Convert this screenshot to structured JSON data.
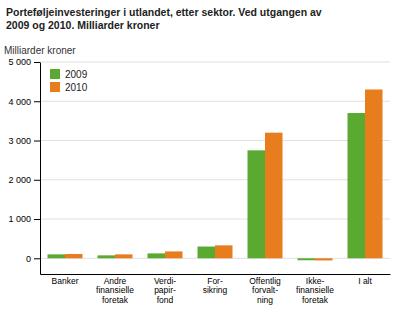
{
  "chart_data": {
    "type": "bar",
    "title": "Porteføljeinvesteringer i utlandet, etter sektor. Ved utgangen av\n2009 og 2010. Milliarder kroner",
    "ylabel": "Milliarder kroner",
    "categories": [
      "Banker",
      "Andre\nfinansielle\nforetak",
      "Verdi-\npapir-\nfond",
      "For-\nsikring",
      "Offentlig\nforvalt-\nning",
      "Ikke-\nfinansielle\nforetak",
      "I alt"
    ],
    "series": [
      {
        "name": "2009",
        "color": "#5aaa32",
        "values": [
          100,
          75,
          125,
          300,
          2750,
          -50,
          3700
        ]
      },
      {
        "name": "2010",
        "color": "#e87d1e",
        "values": [
          110,
          100,
          175,
          330,
          3200,
          -55,
          4300
        ]
      }
    ],
    "ylim": [
      -400,
      5000
    ],
    "yticks": [
      0,
      {
        "value": 1000,
        "label": "1 000"
      },
      {
        "value": 2000,
        "label": "2 000"
      },
      {
        "value": 3000,
        "label": "3 000"
      },
      {
        "value": 4000,
        "label": "4 000"
      },
      {
        "value": 5000,
        "label": "5 000"
      }
    ],
    "grid": true,
    "legend": "top-left"
  }
}
